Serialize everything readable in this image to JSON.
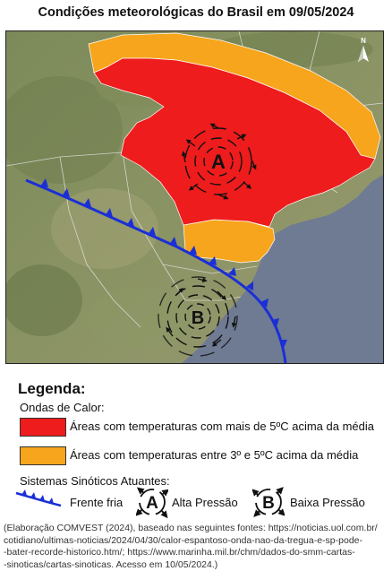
{
  "title": "Condições meteorológicas do Brasil em 09/05/2024",
  "compass": "N",
  "map_symbols": {
    "high_pressure": "A",
    "low_pressure": "B"
  },
  "legend": {
    "heading": "Legenda:",
    "heat_section": "Ondas de Calor:",
    "items": [
      {
        "label": "Áreas com temperaturas com mais de 5ºC acima da média",
        "color": "#ee1c1c"
      },
      {
        "label": "Áreas com temperaturas entre 3º e 5ºC acima da média",
        "color": "#f7a51c"
      }
    ],
    "systems_section": "Sistemas Sinóticos Atuantes:",
    "systems": [
      {
        "label": "Frente fria",
        "icon": "cold-front-icon",
        "color": "#1a2fd6"
      },
      {
        "symbol": "A",
        "label": "Alta Pressão",
        "icon": "high-pressure-icon"
      },
      {
        "symbol": "B",
        "label": "Baixa Pressão",
        "icon": "low-pressure-icon"
      }
    ]
  },
  "credit": [
    "(Elaboração COMVEST (2024), baseado nas seguintes fontes: https://noticias.uol.com.br/",
    "cotidiano/ultimas-noticias/2024/04/30/calor-espantoso-onda-nao-da-tregua-e-sp-pode-",
    "-bater-recorde-historico.htm/; https://www.marinha.mil.br/chm/dados-do-smm-cartas-",
    "-sinoticas/cartas-sinoticas. Acesso em 10/05/2024.)"
  ]
}
